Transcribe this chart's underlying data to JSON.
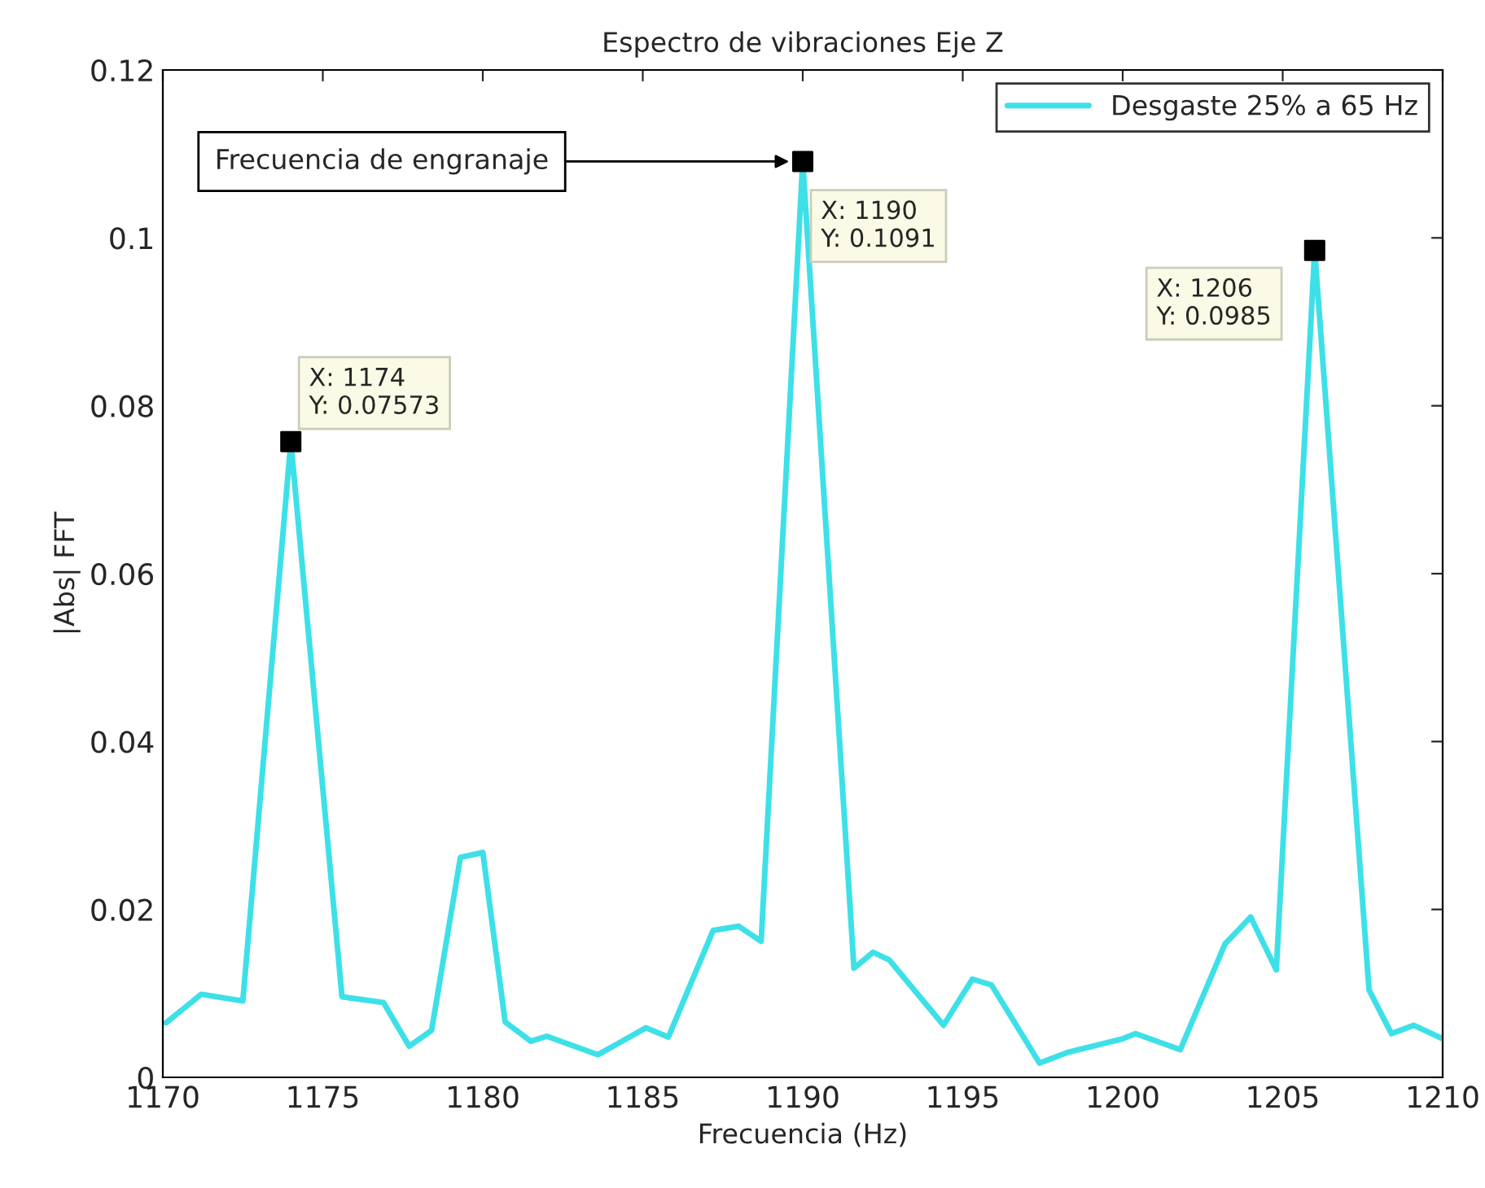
{
  "chart_data": {
    "type": "line",
    "title": "Espectro de vibraciones Eje Z",
    "xlabel": "Frecuencia (Hz)",
    "ylabel": "|Abs| FFT",
    "xlim": [
      1170,
      1210
    ],
    "xticks": [
      1170,
      1175,
      1180,
      1185,
      1190,
      1195,
      1200,
      1205,
      1210
    ],
    "ylim": [
      0,
      0.12
    ],
    "yticks": [
      0,
      0.02,
      0.04,
      0.06,
      0.08,
      0.1,
      0.12
    ],
    "grid": false,
    "legend": "top right",
    "series": [
      {
        "name": "Desgaste 25% a 65 Hz",
        "color": "#3ee0e8",
        "marker": "none",
        "line_style": "solid",
        "x": [
          1170.1,
          1171.2,
          1172.5,
          1174,
          1175.6,
          1176.9,
          1177.7,
          1178.4,
          1179.3,
          1180.0,
          1180.7,
          1181.5,
          1182.0,
          1183.6,
          1185.1,
          1185.8,
          1187.2,
          1188.0,
          1188.7,
          1190,
          1191.6,
          1192.2,
          1192.7,
          1194.4,
          1195.3,
          1195.9,
          1197.4,
          1198.3,
          1200.0,
          1200.4,
          1201.8,
          1203.2,
          1204.0,
          1204.8,
          1206,
          1207.7,
          1208.4,
          1209.1,
          1210
        ],
        "values": [
          0.0065,
          0.0099,
          0.0091,
          0.07573,
          0.0096,
          0.0089,
          0.0037,
          0.0056,
          0.0262,
          0.0268,
          0.0066,
          0.0043,
          0.0049,
          0.0027,
          0.0059,
          0.0048,
          0.0175,
          0.018,
          0.0162,
          0.1091,
          0.013,
          0.0149,
          0.014,
          0.0062,
          0.0117,
          0.011,
          0.0017,
          0.003,
          0.0046,
          0.0052,
          0.0033,
          0.0159,
          0.0191,
          0.0128,
          0.0985,
          0.0104,
          0.0052,
          0.0062,
          0.0046
        ]
      },
      {
        "color": "#000000",
        "type": "scatter",
        "marker": "square",
        "x": [
          1174,
          1190,
          1206
        ],
        "values": [
          0.07573,
          0.1091,
          0.0985
        ]
      }
    ],
    "annotations": [
      {
        "text": "X: 1174\nY: 0.07573",
        "x": 1174,
        "y": 0.07573
      },
      {
        "text": "X: 1190\nY: 0.1091",
        "x": 1190,
        "y": 0.1091
      },
      {
        "text": "X: 1206\nY: 0.0985",
        "x": 1206,
        "y": 0.0985
      },
      "Frecuencia de engranaje"
    ]
  }
}
